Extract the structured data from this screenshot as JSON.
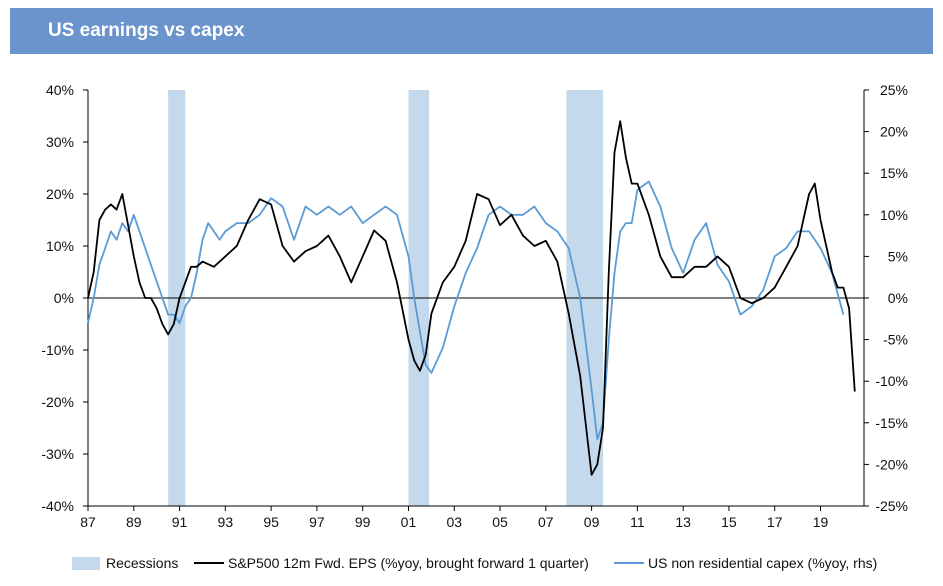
{
  "header": {
    "title": "US earnings vs capex"
  },
  "colors": {
    "header_bg": "#6b93cc",
    "recession": "#c5d9ec",
    "eps": "#000000",
    "capex": "#5b9bd5"
  },
  "chart_data": {
    "type": "line",
    "title": "US earnings vs capex",
    "x_ticks": [
      "87",
      "89",
      "91",
      "93",
      "95",
      "97",
      "99",
      "01",
      "03",
      "05",
      "07",
      "09",
      "11",
      "13",
      "15",
      "17",
      "19"
    ],
    "xlim": [
      1987,
      2020.9
    ],
    "y_left": {
      "ticks": [
        "40%",
        "30%",
        "20%",
        "10%",
        "0%",
        "-10%",
        "-20%",
        "-30%",
        "-40%"
      ],
      "ylim": [
        -40,
        40
      ]
    },
    "y_right": {
      "ticks": [
        "25%",
        "20%",
        "15%",
        "10%",
        "5%",
        "0%",
        "-5%",
        "-10%",
        "-15%",
        "-20%",
        "-25%"
      ],
      "ylim": [
        -25,
        25
      ]
    },
    "grid": false,
    "legend_position": "bottom",
    "recessions": [
      [
        1990.5,
        1991.25
      ],
      [
        2001.0,
        2001.9
      ],
      [
        2007.9,
        2009.5
      ]
    ],
    "series": [
      {
        "name": "S&P500 12m Fwd. EPS (%yoy, brought forward 1 quarter)",
        "axis": "left",
        "x": [
          1987.0,
          1987.25,
          1987.5,
          1987.75,
          1988.0,
          1988.25,
          1988.5,
          1988.75,
          1989.0,
          1989.25,
          1989.5,
          1989.75,
          1990.0,
          1990.25,
          1990.5,
          1990.75,
          1991.0,
          1991.25,
          1991.5,
          1991.75,
          1992.0,
          1992.5,
          1993.0,
          1993.5,
          1994.0,
          1994.5,
          1995.0,
          1995.5,
          1996.0,
          1996.5,
          1997.0,
          1997.5,
          1998.0,
          1998.5,
          1999.0,
          1999.5,
          2000.0,
          2000.5,
          2001.0,
          2001.25,
          2001.5,
          2001.75,
          2002.0,
          2002.5,
          2003.0,
          2003.5,
          2004.0,
          2004.5,
          2005.0,
          2005.5,
          2006.0,
          2006.5,
          2007.0,
          2007.5,
          2008.0,
          2008.5,
          2009.0,
          2009.25,
          2009.5,
          2009.75,
          2010.0,
          2010.25,
          2010.5,
          2010.75,
          2011.0,
          2011.5,
          2012.0,
          2012.5,
          2013.0,
          2013.5,
          2014.0,
          2014.5,
          2015.0,
          2015.5,
          2016.0,
          2016.5,
          2017.0,
          2017.5,
          2018.0,
          2018.25,
          2018.5,
          2018.75,
          2019.0,
          2019.5,
          2019.75,
          2020.0,
          2020.25,
          2020.5
        ],
        "values": [
          0,
          5,
          15,
          17,
          18,
          17,
          20,
          14,
          8,
          3,
          0,
          0,
          -2,
          -5,
          -7,
          -5,
          0,
          3,
          6,
          6,
          7,
          6,
          8,
          10,
          15,
          19,
          18,
          10,
          7,
          9,
          10,
          12,
          8,
          3,
          8,
          13,
          11,
          3,
          -8,
          -12,
          -14,
          -11,
          -3,
          3,
          6,
          11,
          20,
          19,
          14,
          16,
          12,
          10,
          11,
          7,
          -3,
          -15,
          -34,
          -32,
          -25,
          5,
          28,
          34,
          27,
          22,
          22,
          16,
          8,
          4,
          4,
          6,
          6,
          8,
          6,
          0,
          -1,
          0,
          2,
          6,
          10,
          15,
          20,
          22,
          15,
          5,
          2,
          2,
          -2,
          -18
        ]
      },
      {
        "name": "US non residential capex (%yoy, rhs)",
        "axis": "right",
        "x": [
          1987.0,
          1987.25,
          1987.5,
          1987.75,
          1988.0,
          1988.25,
          1988.5,
          1988.75,
          1989.0,
          1989.25,
          1989.5,
          1989.75,
          1990.0,
          1990.25,
          1990.5,
          1990.75,
          1991.0,
          1991.25,
          1991.5,
          1991.75,
          1992.0,
          1992.25,
          1992.5,
          1992.75,
          1993.0,
          1993.5,
          1994.0,
          1994.5,
          1995.0,
          1995.5,
          1996.0,
          1996.5,
          1997.0,
          1997.5,
          1998.0,
          1998.5,
          1999.0,
          1999.5,
          2000.0,
          2000.5,
          2001.0,
          2001.25,
          2001.5,
          2001.75,
          2002.0,
          2002.5,
          2003.0,
          2003.5,
          2004.0,
          2004.5,
          2005.0,
          2005.5,
          2006.0,
          2006.5,
          2007.0,
          2007.5,
          2008.0,
          2008.5,
          2009.0,
          2009.25,
          2009.5,
          2009.75,
          2010.0,
          2010.25,
          2010.5,
          2010.75,
          2011.0,
          2011.5,
          2012.0,
          2012.5,
          2013.0,
          2013.5,
          2014.0,
          2014.5,
          2015.0,
          2015.5,
          2016.0,
          2016.5,
          2017.0,
          2017.5,
          2018.0,
          2018.5,
          2019.0,
          2019.5,
          2020.0
        ],
        "values": [
          -3,
          0,
          4,
          6,
          8,
          7,
          9,
          8,
          10,
          8,
          6,
          4,
          2,
          0,
          -2,
          -2,
          -3,
          -1,
          0,
          3,
          7,
          9,
          8,
          7,
          8,
          9,
          9,
          10,
          12,
          11,
          7,
          11,
          10,
          11,
          10,
          11,
          9,
          10,
          11,
          10,
          5,
          0,
          -4,
          -8,
          -9,
          -6,
          -1,
          3,
          6,
          10,
          11,
          10,
          10,
          11,
          9,
          8,
          6,
          0,
          -11,
          -17,
          -15,
          -5,
          3,
          8,
          9,
          9,
          13,
          14,
          11,
          6,
          3,
          7,
          9,
          4,
          2,
          -2,
          -1,
          1,
          5,
          6,
          8,
          8,
          6,
          3,
          -2
        ]
      }
    ],
    "legend": [
      {
        "label": "Recessions",
        "kind": "box",
        "color": "#c5d9ec"
      },
      {
        "label": "S&P500 12m Fwd. EPS (%yoy, brought forward 1 quarter)",
        "kind": "line",
        "color": "#000000"
      },
      {
        "label": "US non residential capex (%yoy, rhs)",
        "kind": "line",
        "color": "#5b9bd5"
      }
    ]
  }
}
